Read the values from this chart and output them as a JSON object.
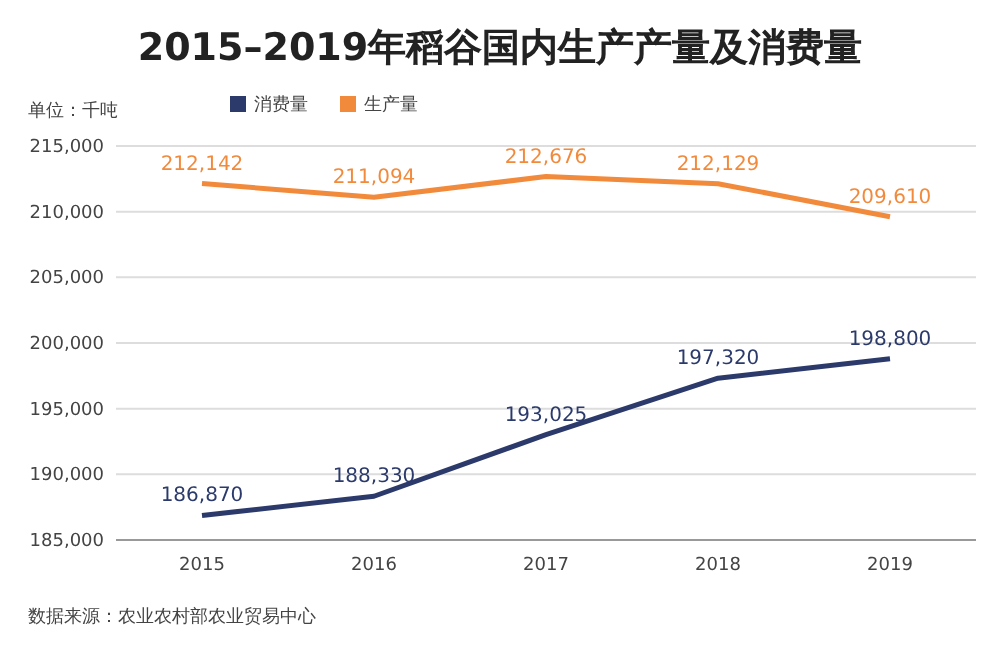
{
  "chart_data": {
    "type": "line",
    "title": "2015–2019年稻谷国内生产产量及消费量",
    "categories": [
      "2015",
      "2016",
      "2017",
      "2018",
      "2019"
    ],
    "series": [
      {
        "name": "消费量",
        "color": "#2b3a6b",
        "values": [
          186870,
          188330,
          193025,
          197320,
          198800
        ],
        "value_labels": [
          "186,870",
          "188,330",
          "193,025",
          "197,320",
          "198,800"
        ]
      },
      {
        "name": "生产量",
        "color": "#f28a3c",
        "values": [
          212142,
          211094,
          212676,
          212129,
          209610
        ],
        "value_labels": [
          "212,142",
          "211,094",
          "212,676",
          "212,129",
          "209,610"
        ]
      }
    ],
    "ylim": [
      185000,
      215000
    ],
    "yticks": [
      {
        "value": 185000,
        "label": "185,000"
      },
      {
        "value": 190000,
        "label": "190,000"
      },
      {
        "value": 195000,
        "label": "195,000"
      },
      {
        "value": 200000,
        "label": "200,000"
      },
      {
        "value": 205000,
        "label": "205,000"
      },
      {
        "value": 210000,
        "label": "210,000"
      },
      {
        "value": 215000,
        "label": "215,000"
      }
    ],
    "grid": "y",
    "legend": "top left",
    "annotations": [
      "单位：千吨",
      "数据来源：农业农村部农业贸易中心"
    ]
  }
}
